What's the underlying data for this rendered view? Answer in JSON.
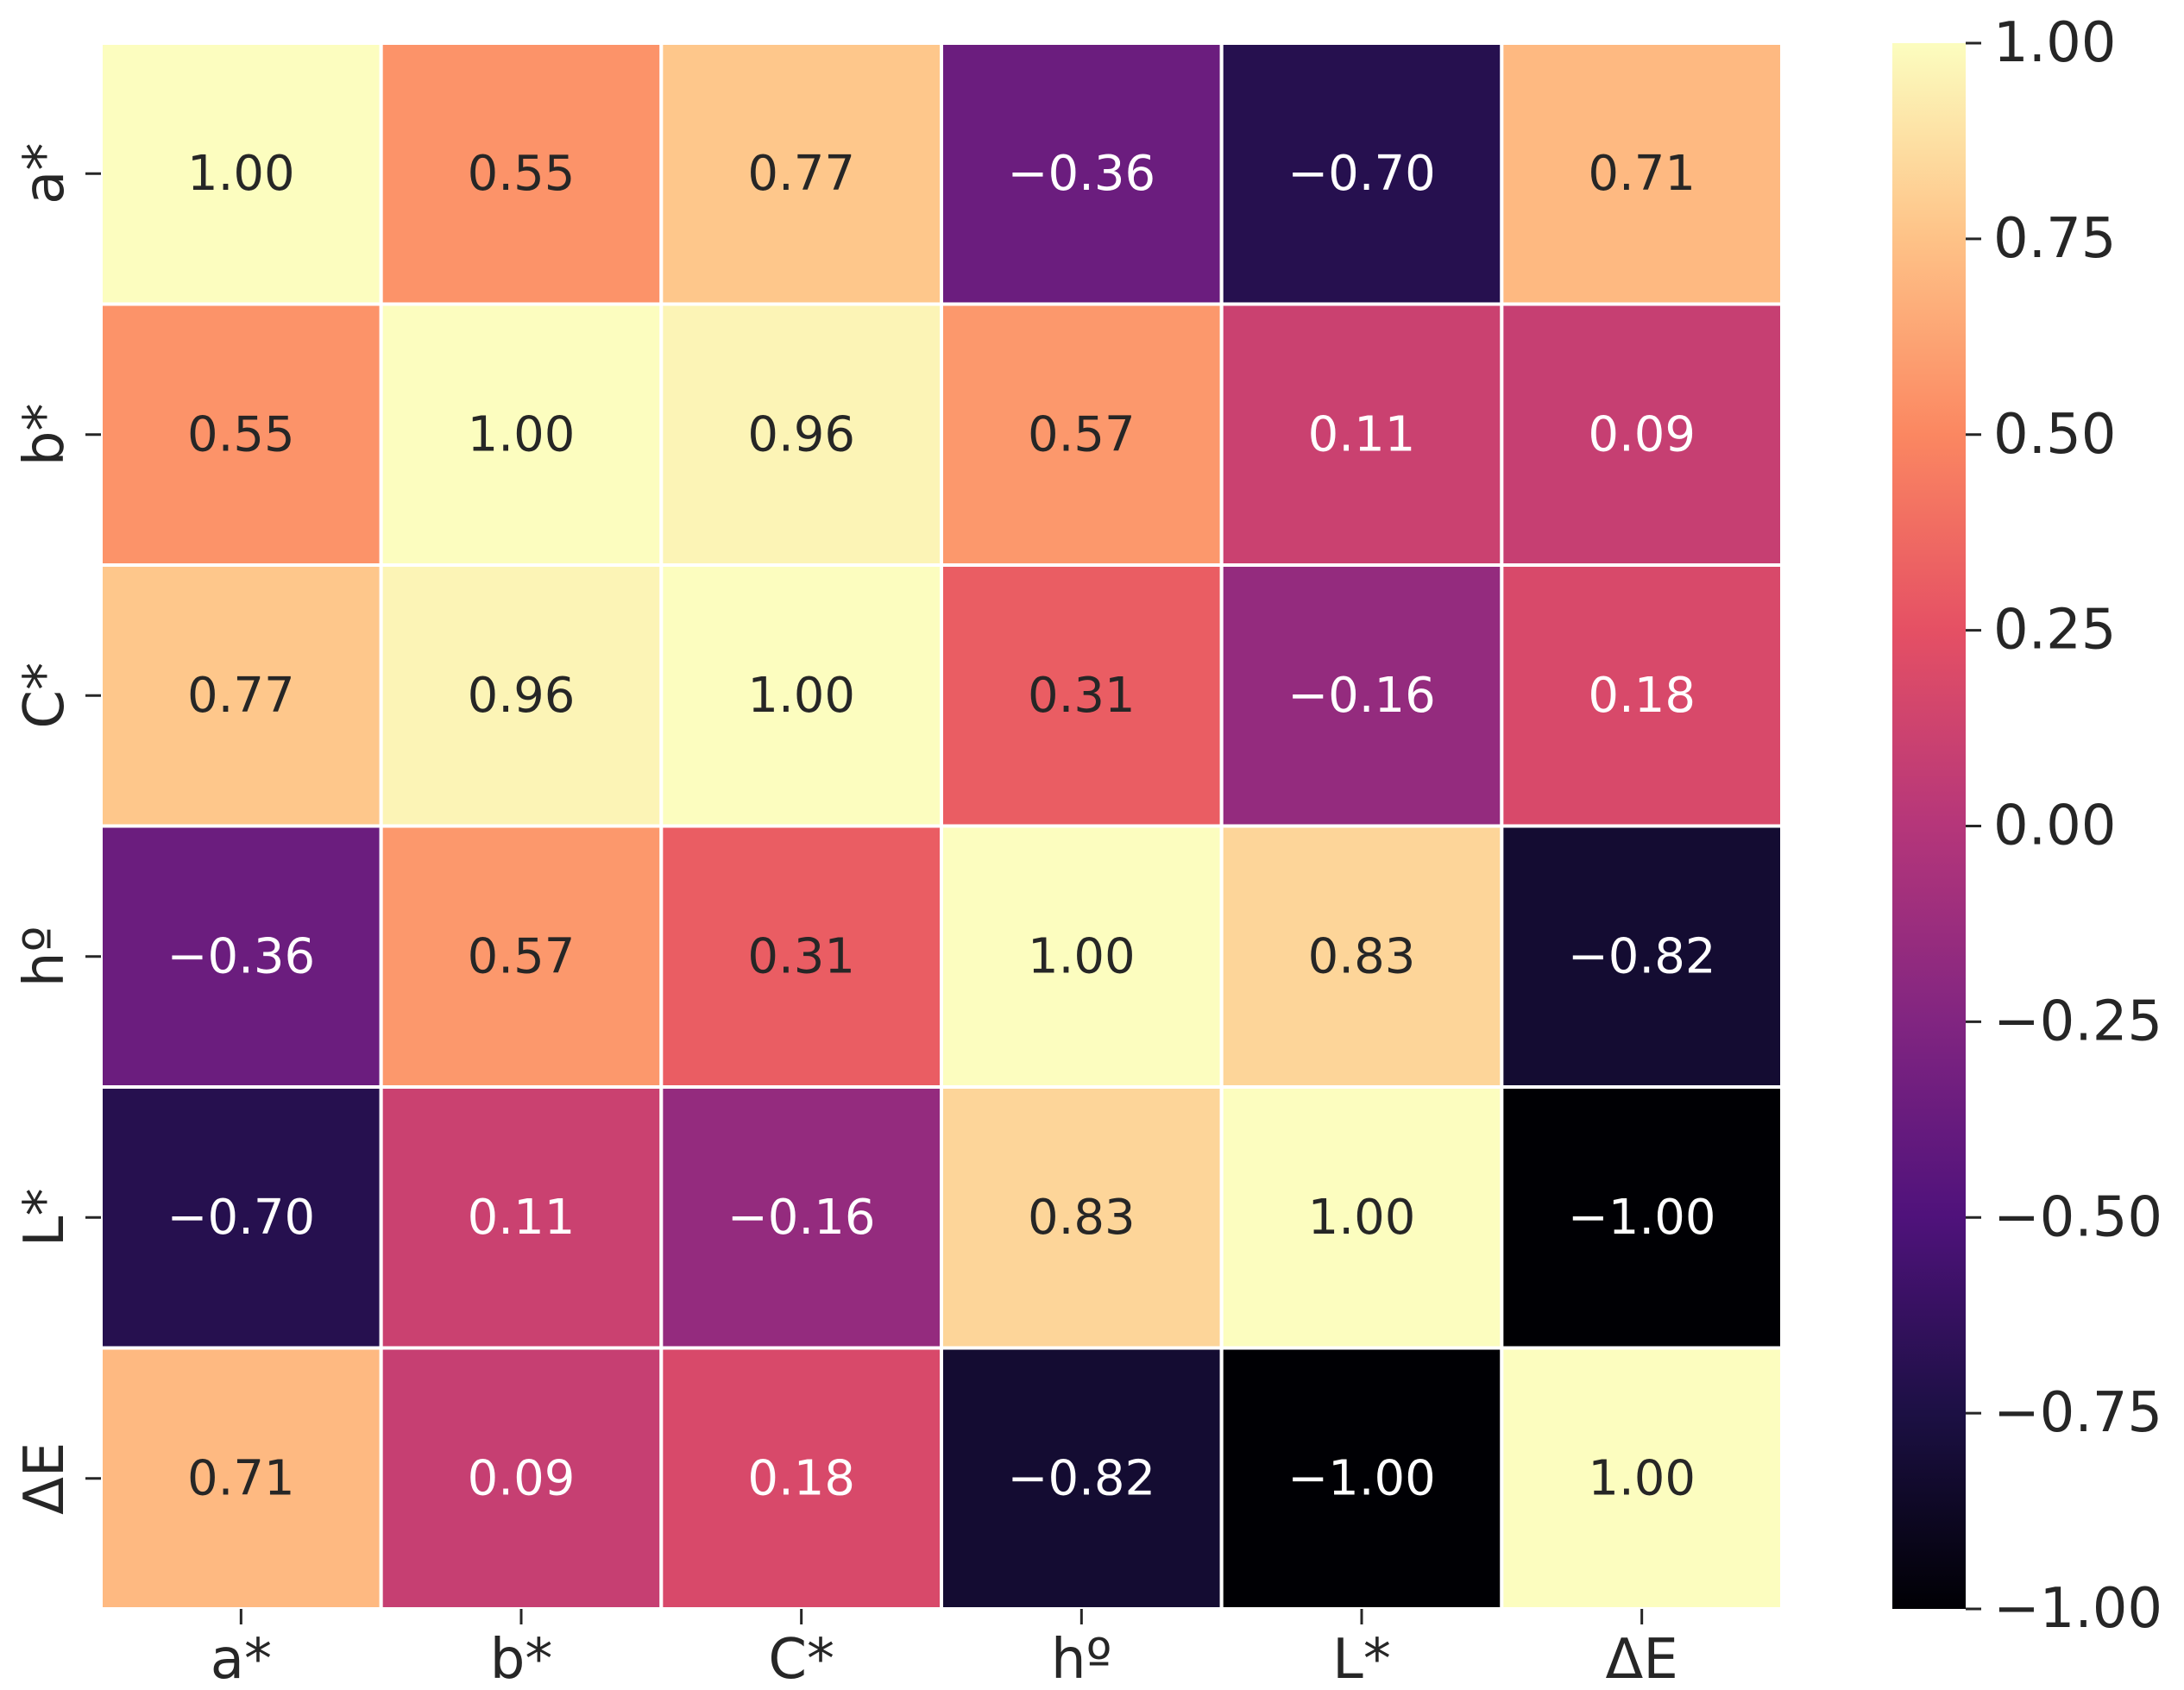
{
  "chart_data": {
    "type": "heatmap",
    "title": "",
    "xlabel": "",
    "ylabel": "",
    "row_labels": [
      "a*",
      "b*",
      "C*",
      "hº",
      "L*",
      "ΔE"
    ],
    "col_labels": [
      "a*",
      "b*",
      "C*",
      "hº",
      "L*",
      "ΔE"
    ],
    "values": [
      [
        1.0,
        0.55,
        0.77,
        -0.36,
        -0.7,
        0.71
      ],
      [
        0.55,
        1.0,
        0.96,
        0.57,
        0.11,
        0.09
      ],
      [
        0.77,
        0.96,
        1.0,
        0.31,
        -0.16,
        0.18
      ],
      [
        -0.36,
        0.57,
        0.31,
        1.0,
        0.83,
        -0.82
      ],
      [
        -0.7,
        0.11,
        -0.16,
        0.83,
        1.0,
        -1.0
      ],
      [
        0.71,
        0.09,
        0.18,
        -0.82,
        -1.0,
        1.0
      ]
    ],
    "value_labels": [
      [
        "1.00",
        "0.55",
        "0.77",
        "−0.36",
        "−0.70",
        "0.71"
      ],
      [
        "0.55",
        "1.00",
        "0.96",
        "0.57",
        "0.11",
        "0.09"
      ],
      [
        "0.77",
        "0.96",
        "1.00",
        "0.31",
        "−0.16",
        "0.18"
      ],
      [
        "−0.36",
        "0.57",
        "0.31",
        "1.00",
        "0.83",
        "−0.82"
      ],
      [
        "−0.70",
        "0.11",
        "−0.16",
        "0.83",
        "1.00",
        "−1.00"
      ],
      [
        "0.71",
        "0.09",
        "0.18",
        "−0.82",
        "−1.00",
        "1.00"
      ]
    ],
    "colormap": "magma",
    "colorbar": {
      "vmin": -1.0,
      "vmax": 1.0,
      "ticks": [
        1.0,
        0.75,
        0.5,
        0.25,
        0.0,
        -0.25,
        -0.5,
        -0.75,
        -1.0
      ],
      "tick_labels": [
        "1.00",
        "0.75",
        "0.50",
        "0.25",
        "0.00",
        "−0.25",
        "−0.50",
        "−0.75",
        "−1.00"
      ]
    },
    "gridline_color": "#ffffff",
    "text_colors": {
      "dark": "#262626",
      "light": "#ffffff"
    }
  }
}
